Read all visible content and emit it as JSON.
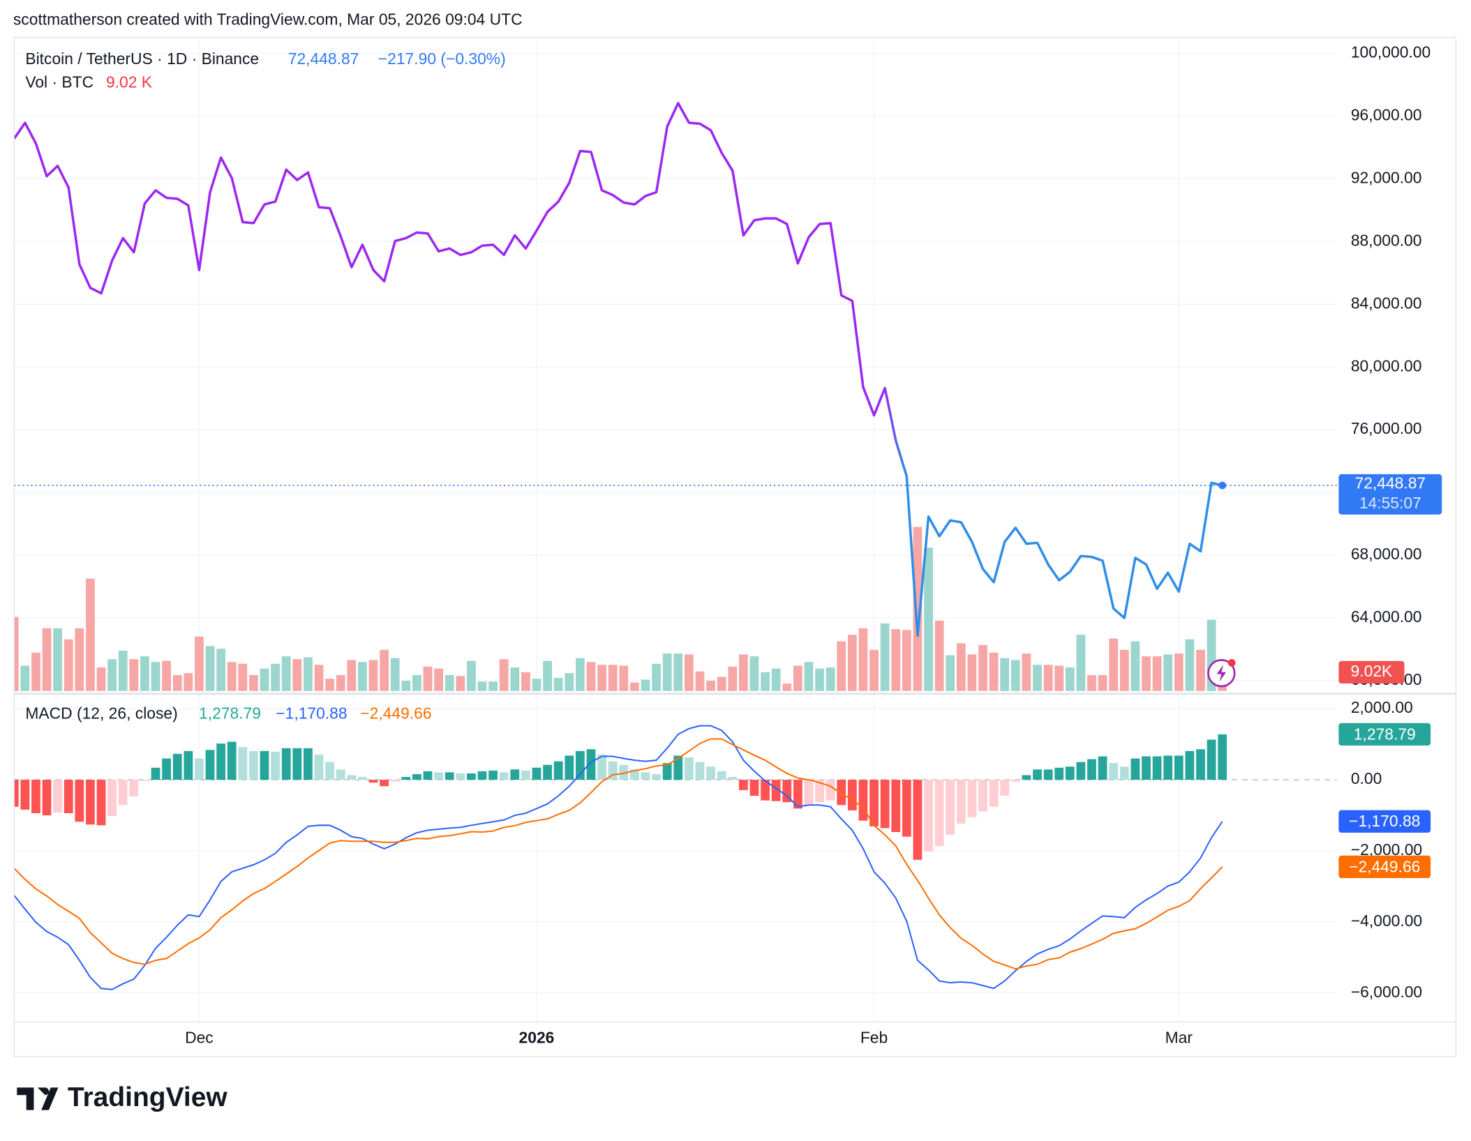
{
  "header": {
    "attribution": "scottmatherson created with TradingView.com, Mar 05, 2026 09:04 UTC"
  },
  "footer": {
    "brand": "TradingView"
  },
  "chart_data": [
    {
      "type": "line",
      "title": "Bitcoin / TetherUS · 1D · Binance",
      "last_label": "72,448.87",
      "change_label": "−217.90 (−0.30%)",
      "countdown": "14:55:07",
      "categories": [
        null,
        null,
        null,
        null,
        null,
        null,
        null,
        null,
        null,
        null,
        null,
        null,
        null,
        null,
        null,
        null,
        null,
        "Dec",
        null,
        null,
        null,
        null,
        null,
        null,
        null,
        null,
        null,
        null,
        null,
        null,
        null,
        null,
        null,
        null,
        null,
        null,
        null,
        null,
        null,
        null,
        null,
        null,
        null,
        null,
        null,
        null,
        null,
        null,
        "2026",
        null,
        null,
        null,
        null,
        null,
        null,
        null,
        null,
        null,
        null,
        null,
        null,
        null,
        null,
        null,
        null,
        null,
        null,
        null,
        null,
        null,
        null,
        null,
        null,
        null,
        null,
        null,
        null,
        null,
        null,
        "Feb",
        null,
        null,
        null,
        null,
        null,
        null,
        null,
        null,
        null,
        null,
        null,
        null,
        null,
        null,
        null,
        null,
        null,
        null,
        null,
        null,
        null,
        null,
        null,
        null,
        null,
        null,
        null,
        "Mar",
        null,
        null,
        null,
        null
      ],
      "series": [
        {
          "color": "#9c27f0",
          "color_end": "#2e8de8",
          "tag_color": "#3179f5",
          "values": [
            94560,
            95575,
            94260,
            92170,
            92830,
            91450,
            86550,
            85050,
            84700,
            86790,
            88220,
            87320,
            90430,
            91270,
            90790,
            90730,
            90310,
            86190,
            91150,
            93360,
            92050,
            89240,
            89180,
            90370,
            90550,
            92590,
            91930,
            92410,
            90190,
            90130,
            88340,
            86370,
            87800,
            86190,
            85470,
            88040,
            88220,
            88580,
            88520,
            87380,
            87560,
            87150,
            87320,
            87740,
            87800,
            87150,
            88400,
            87560,
            88700,
            89900,
            90550,
            91750,
            93780,
            93720,
            91270,
            90970,
            90490,
            90370,
            90910,
            91150,
            95340,
            96830,
            95580,
            95520,
            95100,
            93660,
            92530,
            88400,
            89360,
            89480,
            89480,
            89120,
            86610,
            88280,
            89120,
            89180,
            84570,
            84220,
            78720,
            76920,
            78660,
            75310,
            73030,
            62870,
            70460,
            69210,
            70220,
            70100,
            68850,
            67120,
            66280,
            68850,
            69750,
            68730,
            68790,
            67410,
            66400,
            66940,
            67950,
            67890,
            67650,
            64600,
            64000,
            67830,
            67410,
            65860,
            66880,
            65680,
            68730,
            68250,
            72620,
            72448.87
          ]
        }
      ],
      "volume": {
        "name": "Vol · BTC",
        "last_label": "9.02 K",
        "tag_label": "9.02K",
        "up_color": "#9ad6ce",
        "down_color": "#f7a6a6",
        "tag_color": "#f05252",
        "label_color": "#f23645",
        "ylim": [
          0,
          300000
        ],
        "values": [
          34000,
          11600,
          17600,
          28800,
          28800,
          23700,
          28800,
          51600,
          10800,
          14600,
          18500,
          14600,
          15900,
          13300,
          13800,
          7300,
          8200,
          25000,
          20600,
          19400,
          13300,
          12500,
          7300,
          10300,
          12500,
          15900,
          14600,
          15500,
          12000,
          5600,
          7300,
          14200,
          13300,
          14200,
          18900,
          15100,
          4700,
          7300,
          11200,
          10300,
          7300,
          6900,
          13800,
          4300,
          4300,
          14600,
          10800,
          8600,
          5600,
          13800,
          6000,
          8200,
          15100,
          13300,
          12000,
          12000,
          11600,
          3900,
          5200,
          12500,
          17200,
          17200,
          16800,
          9000,
          4700,
          6500,
          11200,
          16800,
          15900,
          8600,
          10300,
          3400,
          11600,
          13300,
          10300,
          10800,
          22800,
          25800,
          28800,
          18900,
          31000,
          28400,
          28000,
          75300,
          65800,
          32300,
          16400,
          21900,
          16800,
          21100,
          17600,
          15100,
          14200,
          17200,
          12000,
          12000,
          11600,
          10800,
          25800,
          7300,
          7300,
          24100,
          18900,
          22800,
          15900,
          15900,
          16800,
          17200,
          23700,
          18900,
          32700,
          9020
        ]
      },
      "ylim": [
        59342,
        101016
      ],
      "yticks": [
        {
          "value": 60000,
          "label": "60,000.00"
        },
        {
          "value": 64000,
          "label": "64,000.00"
        },
        {
          "value": 68000,
          "label": "68,000.00"
        },
        {
          "value": 72000,
          "label": "72,000.00"
        },
        {
          "value": 76000,
          "label": "76,000.00"
        },
        {
          "value": 80000,
          "label": "80,000.00"
        },
        {
          "value": 84000,
          "label": "84,000.00"
        },
        {
          "value": 88000,
          "label": "88,000.00"
        },
        {
          "value": 92000,
          "label": "92,000.00"
        },
        {
          "value": 96000,
          "label": "96,000.00"
        },
        {
          "value": 100000,
          "label": "100,000.00"
        }
      ],
      "grid": true
    },
    {
      "type": "macd",
      "title": "MACD (12, 26, close)",
      "histogram": {
        "last_label": "1,278.79",
        "label_color": "#22ab94",
        "tag_color": "#26a69a",
        "colors": [
          "#26a69a",
          "#b2dfdb",
          "#ff5252",
          "#ffcdd2"
        ],
        "values": [
          -760,
          -840,
          -940,
          -1000,
          -920,
          -940,
          -1180,
          -1260,
          -1280,
          -1020,
          -710,
          -470,
          -30,
          340,
          600,
          730,
          810,
          600,
          840,
          1020,
          1070,
          920,
          810,
          810,
          790,
          890,
          890,
          890,
          710,
          500,
          290,
          130,
          80,
          -80,
          -180,
          -50,
          80,
          160,
          240,
          210,
          210,
          180,
          180,
          240,
          260,
          210,
          290,
          260,
          340,
          420,
          520,
          680,
          810,
          860,
          710,
          520,
          420,
          290,
          210,
          160,
          470,
          680,
          630,
          500,
          370,
          240,
          80,
          -290,
          -450,
          -580,
          -600,
          -630,
          -810,
          -710,
          -630,
          -580,
          -710,
          -860,
          -1150,
          -1310,
          -1360,
          -1470,
          -1600,
          -2250,
          -2020,
          -1860,
          -1550,
          -1230,
          -1050,
          -890,
          -760,
          -450,
          -50,
          130,
          290,
          290,
          340,
          370,
          500,
          580,
          660,
          470,
          370,
          600,
          660,
          660,
          680,
          680,
          810,
          860,
          1130,
          1278.79
        ]
      },
      "macd": {
        "last_label": "−1,170.88",
        "color": "#2962ff",
        "values": [
          -3250,
          -3640,
          -4010,
          -4270,
          -4430,
          -4640,
          -5080,
          -5560,
          -5870,
          -5900,
          -5740,
          -5610,
          -5220,
          -4740,
          -4430,
          -4090,
          -3800,
          -3850,
          -3380,
          -2860,
          -2590,
          -2490,
          -2390,
          -2250,
          -2070,
          -1760,
          -1550,
          -1310,
          -1280,
          -1280,
          -1420,
          -1600,
          -1650,
          -1810,
          -1940,
          -1810,
          -1630,
          -1490,
          -1420,
          -1390,
          -1360,
          -1340,
          -1280,
          -1230,
          -1180,
          -1130,
          -1000,
          -940,
          -810,
          -680,
          -450,
          -180,
          160,
          500,
          660,
          660,
          600,
          550,
          520,
          550,
          890,
          1280,
          1440,
          1520,
          1520,
          1390,
          1070,
          550,
          240,
          -30,
          -240,
          -450,
          -760,
          -710,
          -710,
          -760,
          -1100,
          -1420,
          -1940,
          -2590,
          -2910,
          -3330,
          -3980,
          -5080,
          -5350,
          -5660,
          -5710,
          -5690,
          -5710,
          -5790,
          -5870,
          -5660,
          -5370,
          -5110,
          -4900,
          -4770,
          -4670,
          -4480,
          -4250,
          -4040,
          -3830,
          -3850,
          -3880,
          -3590,
          -3380,
          -3200,
          -2990,
          -2880,
          -2590,
          -2200,
          -1630,
          -1170.88
        ]
      },
      "signal": {
        "last_label": "−2,449.66",
        "color": "#ff6d00",
        "values": [
          -2490,
          -2800,
          -3070,
          -3270,
          -3510,
          -3700,
          -3900,
          -4300,
          -4590,
          -4880,
          -5030,
          -5140,
          -5190,
          -5080,
          -5030,
          -4820,
          -4610,
          -4450,
          -4220,
          -3880,
          -3660,
          -3410,
          -3200,
          -3060,
          -2860,
          -2650,
          -2440,
          -2200,
          -1990,
          -1780,
          -1710,
          -1730,
          -1730,
          -1730,
          -1760,
          -1760,
          -1710,
          -1650,
          -1660,
          -1600,
          -1570,
          -1520,
          -1460,
          -1470,
          -1440,
          -1340,
          -1290,
          -1200,
          -1150,
          -1100,
          -970,
          -860,
          -650,
          -360,
          -50,
          140,
          180,
          260,
          310,
          390,
          420,
          600,
          810,
          1020,
          1150,
          1150,
          990,
          840,
          690,
          550,
          360,
          180,
          50,
          0,
          -80,
          -180,
          -390,
          -560,
          -790,
          -1280,
          -1550,
          -1860,
          -2380,
          -2830,
          -3330,
          -3800,
          -4160,
          -4460,
          -4660,
          -4900,
          -5110,
          -5210,
          -5320,
          -5240,
          -5190,
          -5060,
          -5010,
          -4850,
          -4750,
          -4620,
          -4490,
          -4320,
          -4250,
          -4190,
          -4040,
          -3860,
          -3670,
          -3560,
          -3400,
          -3060,
          -2760,
          -2449.66
        ]
      },
      "ylim": [
        -6813,
        2367
      ],
      "yticks": [
        {
          "value": -6000,
          "label": "−6,000.00"
        },
        {
          "value": -4000,
          "label": "−4,000.00"
        },
        {
          "value": -2000,
          "label": "−2,000.00"
        },
        {
          "value": 0,
          "label": "0.00"
        },
        {
          "value": 2000,
          "label": "2,000.00"
        }
      ],
      "grid": true
    }
  ]
}
